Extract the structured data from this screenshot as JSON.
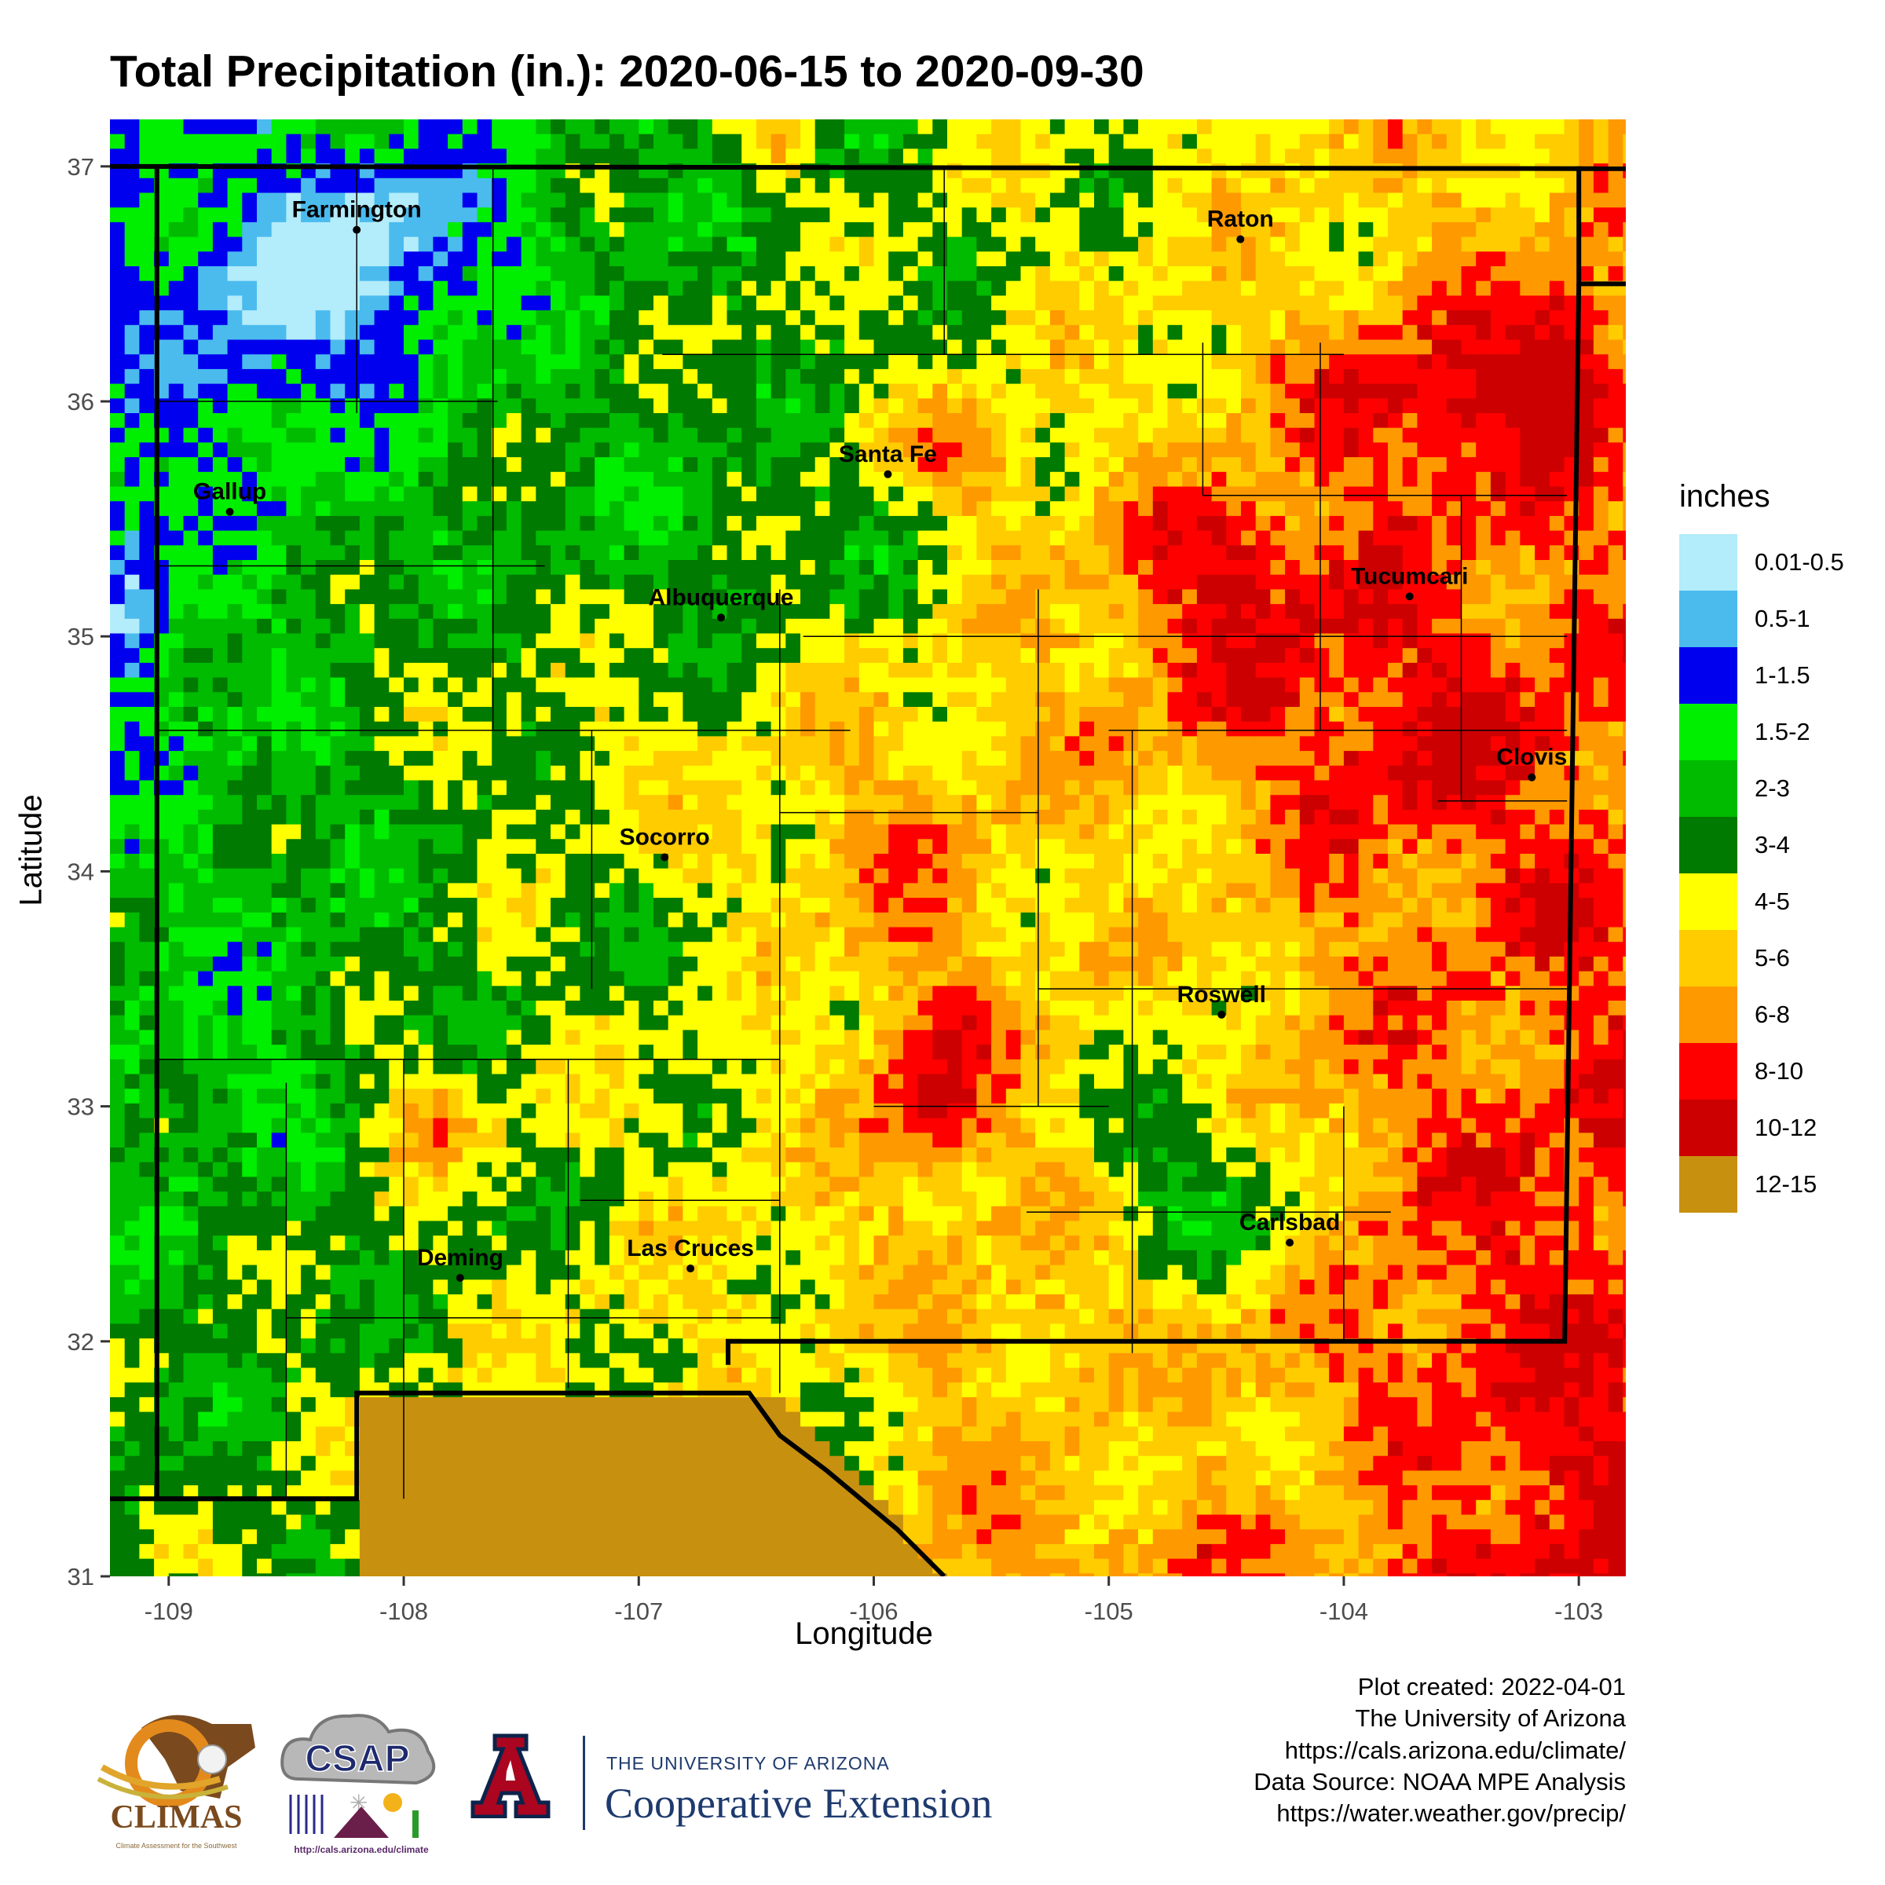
{
  "title": "Total Precipitation (in.): 2020-06-15 to 2020-09-30",
  "x_axis": {
    "label": "Longitude",
    "ticks": [
      "-109",
      "-108",
      "-107",
      "-106",
      "-105",
      "-104",
      "-103"
    ]
  },
  "y_axis": {
    "label": "Latitude",
    "ticks": [
      "31",
      "32",
      "33",
      "34",
      "35",
      "36",
      "37"
    ]
  },
  "extent": {
    "lon": [
      -109.25,
      -102.8
    ],
    "lat": [
      31.0,
      37.2
    ]
  },
  "legend": {
    "title": "inches",
    "items": [
      {
        "label": "0.01-0.5",
        "color": "#b3ecfb"
      },
      {
        "label": "0.5-1",
        "color": "#4bbbee"
      },
      {
        "label": "1-1.5",
        "color": "#0000ee"
      },
      {
        "label": "1.5-2",
        "color": "#00ee00"
      },
      {
        "label": "2-3",
        "color": "#00bb00"
      },
      {
        "label": "3-4",
        "color": "#007a00"
      },
      {
        "label": "4-5",
        "color": "#ffff00"
      },
      {
        "label": "5-6",
        "color": "#ffcc00"
      },
      {
        "label": "6-8",
        "color": "#ff9900"
      },
      {
        "label": "8-10",
        "color": "#ff0000"
      },
      {
        "label": "10-12",
        "color": "#cc0000"
      },
      {
        "label": "12-15",
        "color": "#c8900f"
      }
    ]
  },
  "cities": [
    {
      "name": "Farmington",
      "lon": -108.2,
      "lat": 36.73
    },
    {
      "name": "Raton",
      "lon": -104.44,
      "lat": 36.69
    },
    {
      "name": "Gallup",
      "lon": -108.74,
      "lat": 35.53
    },
    {
      "name": "Santa Fe",
      "lon": -105.94,
      "lat": 35.69
    },
    {
      "name": "Albuquerque",
      "lon": -106.65,
      "lat": 35.08
    },
    {
      "name": "Tucumcari",
      "lon": -103.72,
      "lat": 35.17
    },
    {
      "name": "Clovis",
      "lon": -103.2,
      "lat": 34.4
    },
    {
      "name": "Socorro",
      "lon": -106.89,
      "lat": 34.06
    },
    {
      "name": "Roswell",
      "lon": -104.52,
      "lat": 33.39
    },
    {
      "name": "Carlsbad",
      "lon": -104.23,
      "lat": 32.42
    },
    {
      "name": "Deming",
      "lon": -107.76,
      "lat": 32.27
    },
    {
      "name": "Las Cruces",
      "lon": -106.78,
      "lat": 32.31
    }
  ],
  "credits": [
    "Plot created: 2022-04-01",
    "The University of Arizona",
    "https://cals.arizona.edu/climate/",
    "Data Source: NOAA MPE Analysis",
    "https://water.weather.gov/precip/"
  ],
  "logos": {
    "climas": {
      "name": "CLIMAS",
      "subtitle": "Climate Assessment for the Southwest"
    },
    "csap": {
      "name": "CSAP",
      "url": "http://cals.arizona.edu/climate"
    },
    "ua": {
      "small": "THE UNIVERSITY OF ARIZONA",
      "big": "Cooperative Extension",
      "letter": "A"
    }
  }
}
